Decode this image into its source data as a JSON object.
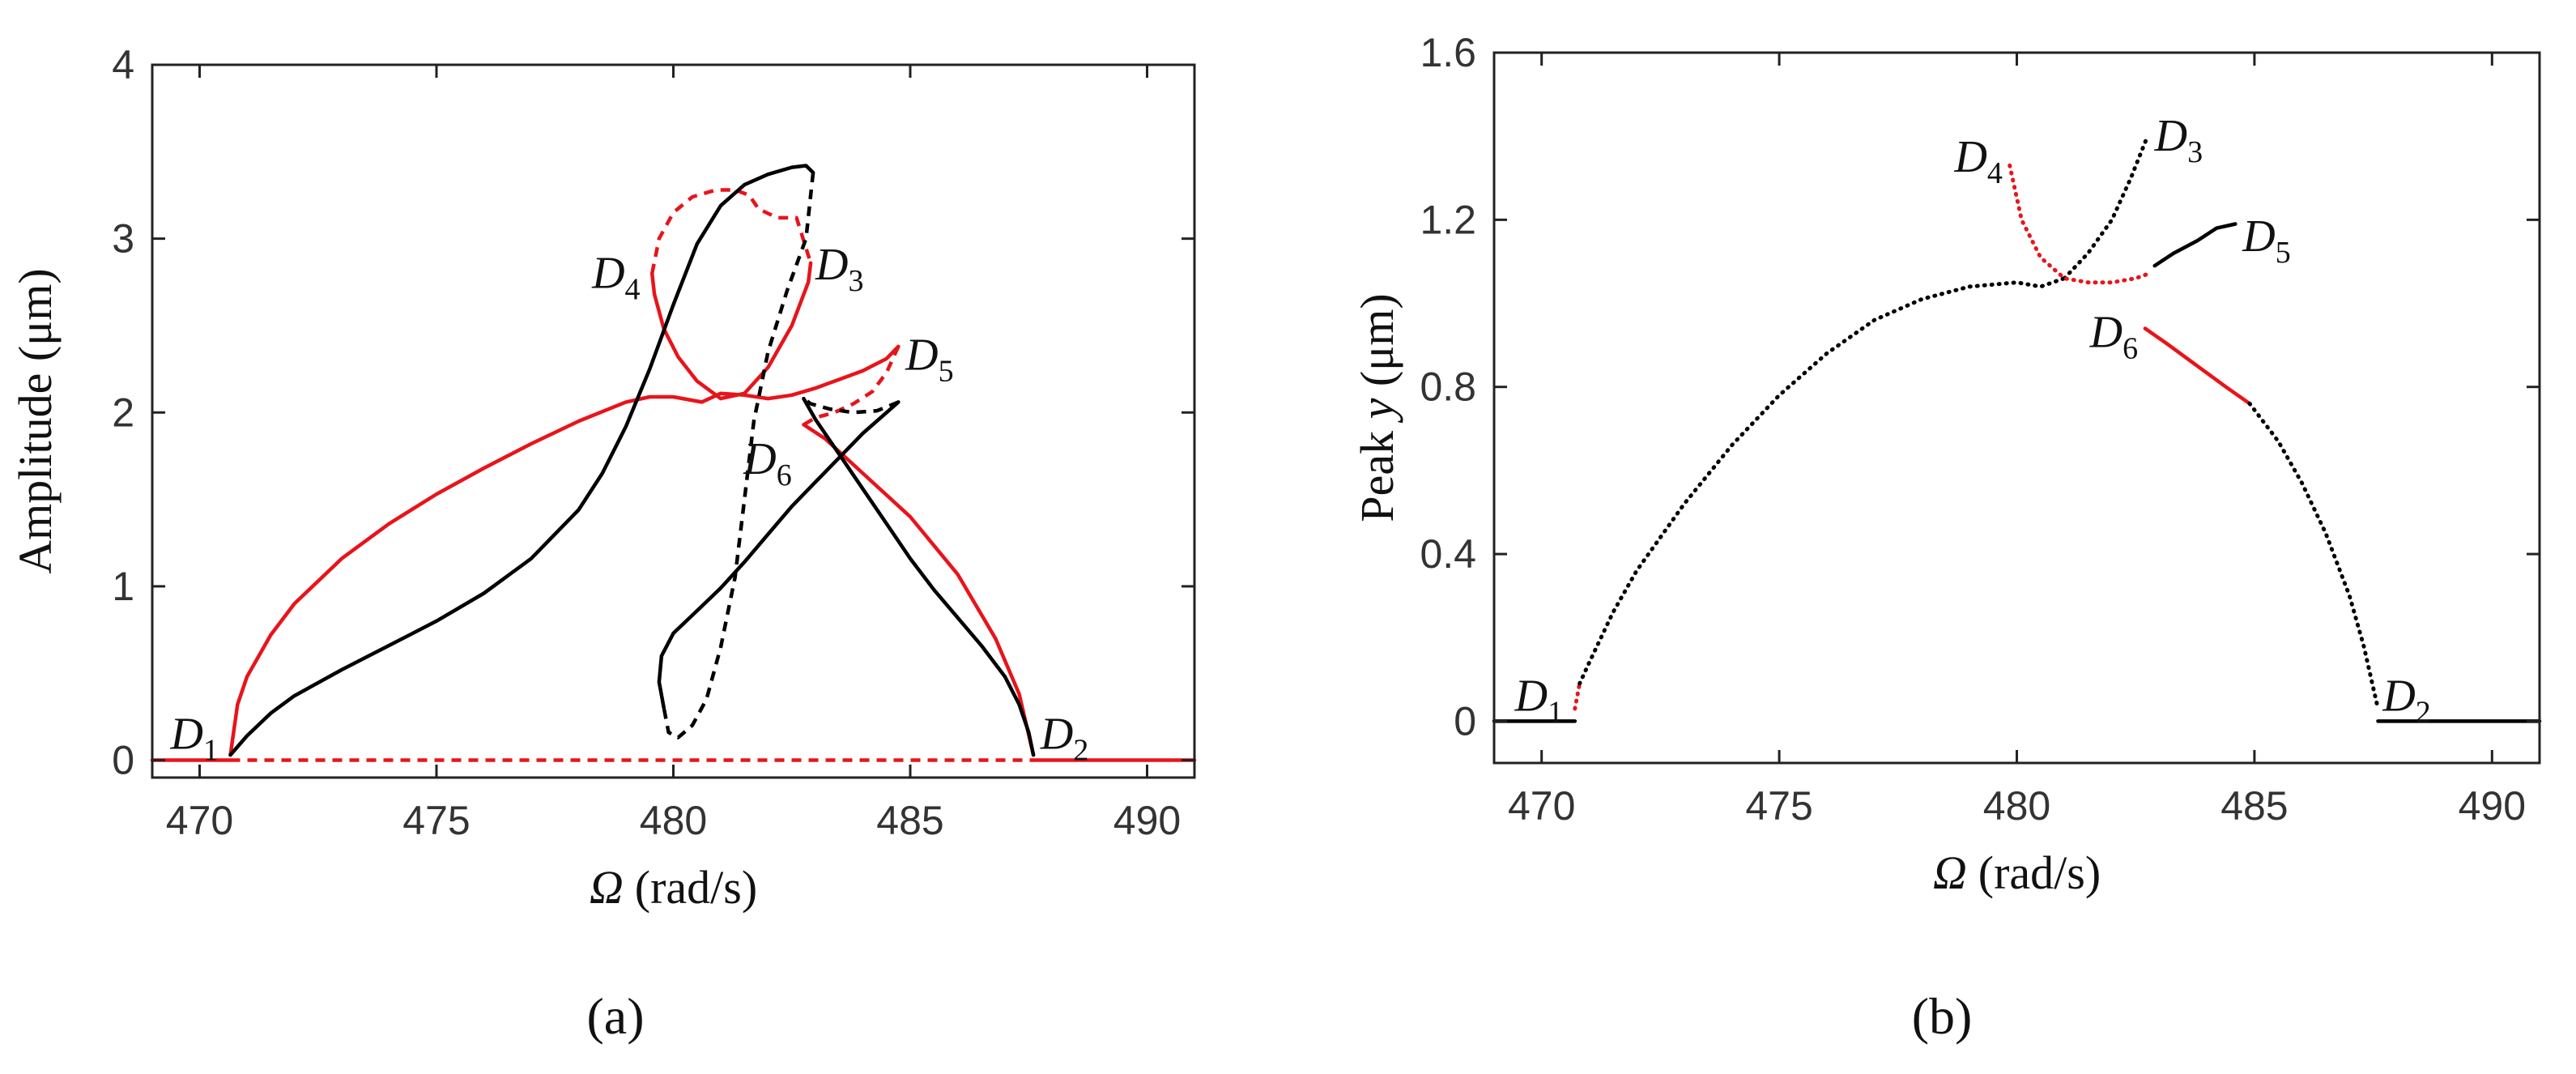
{
  "figure": {
    "caption_a": "(a)",
    "caption_b": "(b)",
    "colors": {
      "black": "#000000",
      "red": "#e8141b",
      "axis": "#222222"
    }
  },
  "chart_data": [
    {
      "id": "a",
      "type": "line",
      "xlabel_symbol": "Ω",
      "xlabel_unit": "(rad/s)",
      "ylabel": "Amplitude (μm)",
      "xlim": [
        469,
        491
      ],
      "ylim": [
        -0.1,
        4
      ],
      "xticks": [
        "470",
        "475",
        "480",
        "485",
        "490"
      ],
      "xtick_values": [
        470,
        475,
        480,
        485,
        490
      ],
      "yticks": [
        "0",
        "1",
        "2",
        "3",
        "4"
      ],
      "ytick_values": [
        0,
        1,
        2,
        3,
        4
      ],
      "points": [
        {
          "name": "D",
          "sub": "1",
          "x": 470.6,
          "y": 0.03,
          "anchor": "end",
          "dx": -0.2,
          "dy": 0.12
        },
        {
          "name": "D",
          "sub": "2",
          "x": 487.6,
          "y": 0.03,
          "anchor": "start",
          "dx": 0.15,
          "dy": 0.12
        },
        {
          "name": "D",
          "sub": "3",
          "x": 482.9,
          "y": 2.85,
          "anchor": "start",
          "dx": 0.1,
          "dy": 0.0
        },
        {
          "name": "D",
          "sub": "4",
          "x": 479.5,
          "y": 2.8,
          "anchor": "end",
          "dx": -0.2,
          "dy": 0.0
        },
        {
          "name": "D",
          "sub": "5",
          "x": 484.7,
          "y": 2.38,
          "anchor": "start",
          "dx": 0.2,
          "dy": -0.05
        },
        {
          "name": "D",
          "sub": "6",
          "x": 482.7,
          "y": 1.93,
          "anchor": "end",
          "dx": -0.2,
          "dy": -0.2
        }
      ],
      "series": [
        {
          "name": "zero-solid",
          "color": "red",
          "dash": false,
          "x": [
            469,
            470.65
          ],
          "y": [
            0,
            0
          ]
        },
        {
          "name": "zero-solid-right",
          "color": "red",
          "dash": false,
          "x": [
            487.6,
            491
          ],
          "y": [
            0,
            0
          ]
        },
        {
          "name": "zero-dashed",
          "color": "red",
          "dash": true,
          "x": [
            470.65,
            487.6
          ],
          "y": [
            0,
            0
          ]
        },
        {
          "name": "red-main",
          "color": "red",
          "dash": false,
          "x": [
            470.65,
            470.8,
            471,
            471.5,
            472,
            473,
            474,
            475,
            476,
            477,
            478,
            479,
            479.5,
            480,
            480.6,
            481,
            481.5,
            482,
            482.5,
            483,
            483.5,
            484,
            484.5,
            484.75
          ],
          "y": [
            0.03,
            0.32,
            0.48,
            0.72,
            0.9,
            1.16,
            1.36,
            1.53,
            1.68,
            1.82,
            1.95,
            2.06,
            2.09,
            2.09,
            2.06,
            2.11,
            2.1,
            2.08,
            2.1,
            2.14,
            2.19,
            2.24,
            2.31,
            2.38
          ]
        },
        {
          "name": "red-loop-left",
          "color": "red",
          "dash": false,
          "x": [
            479.55,
            479.6,
            479.8,
            480.1,
            480.5,
            481,
            481.5,
            482,
            482.5,
            482.85,
            482.9
          ],
          "y": [
            2.8,
            2.68,
            2.48,
            2.32,
            2.18,
            2.08,
            2.11,
            2.26,
            2.5,
            2.75,
            2.86
          ]
        },
        {
          "name": "red-upper-dashed",
          "color": "red",
          "dash": true,
          "x": [
            479.55,
            479.7,
            480,
            480.4,
            480.9,
            481.3,
            481.6,
            481.8,
            482.2,
            482.6,
            482.9
          ],
          "y": [
            2.8,
            3.0,
            3.15,
            3.24,
            3.28,
            3.28,
            3.25,
            3.17,
            3.12,
            3.12,
            2.86
          ]
        },
        {
          "name": "red-right-dashed",
          "color": "red",
          "dash": true,
          "x": [
            484.75,
            484.5,
            484.2,
            483.8,
            483.4,
            483.0,
            482.75
          ],
          "y": [
            2.38,
            2.23,
            2.12,
            2.05,
            2.0,
            1.97,
            1.93
          ]
        },
        {
          "name": "red-right-solid",
          "color": "red",
          "dash": false,
          "x": [
            482.75,
            483.2,
            484,
            485,
            486,
            486.8,
            487.3,
            487.6
          ],
          "y": [
            1.93,
            1.85,
            1.65,
            1.4,
            1.07,
            0.7,
            0.38,
            0.03
          ]
        },
        {
          "name": "black-main",
          "color": "black",
          "dash": false,
          "x": [
            470.65,
            471,
            471.5,
            472,
            473,
            474,
            475,
            476,
            477,
            478,
            478.5,
            479,
            479.5,
            480,
            480.5,
            481,
            481.5,
            482,
            482.5,
            482.8,
            482.95
          ],
          "y": [
            0.03,
            0.14,
            0.27,
            0.37,
            0.52,
            0.66,
            0.8,
            0.96,
            1.16,
            1.44,
            1.65,
            1.92,
            2.25,
            2.62,
            2.97,
            3.19,
            3.31,
            3.37,
            3.41,
            3.42,
            3.38
          ]
        },
        {
          "name": "black-dashed-mid",
          "color": "black",
          "dash": true,
          "x": [
            482.95,
            482.8,
            482.4,
            482.0,
            481.7,
            481.5,
            481.3,
            481.0,
            480.7,
            480.4,
            480.1,
            479.9,
            479.8
          ],
          "y": [
            3.38,
            3.0,
            2.7,
            2.35,
            1.95,
            1.5,
            1.05,
            0.65,
            0.35,
            0.2,
            0.13,
            0.16,
            0.3
          ]
        },
        {
          "name": "black-lower",
          "color": "black",
          "dash": false,
          "x": [
            479.8,
            479.7,
            479.75,
            480,
            480.5,
            481,
            481.5,
            482,
            482.5,
            483,
            483.5,
            484,
            484.5,
            484.75
          ],
          "y": [
            0.3,
            0.45,
            0.6,
            0.73,
            0.86,
            0.99,
            1.14,
            1.3,
            1.46,
            1.6,
            1.74,
            1.88,
            2.0,
            2.06
          ]
        },
        {
          "name": "black-dashed-d5",
          "color": "black",
          "dash": true,
          "x": [
            484.75,
            484.3,
            483.8,
            483.3,
            482.9,
            482.75
          ],
          "y": [
            2.06,
            2.01,
            2.0,
            2.02,
            2.05,
            2.08
          ]
        },
        {
          "name": "black-right",
          "color": "black",
          "dash": false,
          "x": [
            482.75,
            483.0,
            483.5,
            484,
            484.5,
            485,
            485.5,
            486,
            486.5,
            487,
            487.3,
            487.5,
            487.6
          ],
          "y": [
            2.08,
            1.96,
            1.76,
            1.56,
            1.36,
            1.16,
            0.98,
            0.82,
            0.66,
            0.48,
            0.32,
            0.16,
            0.03
          ]
        }
      ]
    },
    {
      "id": "b",
      "type": "scatter",
      "xlabel_symbol": "Ω",
      "xlabel_unit": "(rad/s)",
      "ylabel": "Peak y (μm)",
      "ylabel_main": "Peak ",
      "ylabel_var": "y",
      "ylabel_unit": " (μm)",
      "xlim": [
        469,
        491
      ],
      "ylim": [
        -0.1,
        1.6
      ],
      "xticks": [
        "470",
        "475",
        "480",
        "485",
        "490"
      ],
      "xtick_values": [
        470,
        475,
        480,
        485,
        490
      ],
      "yticks": [
        "0",
        "0.4",
        "0.8",
        "1.2",
        "1.6"
      ],
      "ytick_values": [
        0,
        0.4,
        0.8,
        1.2,
        1.6
      ],
      "points": [
        {
          "name": "D",
          "sub": "1",
          "x": 470.6,
          "y": 0.03,
          "anchor": "end",
          "dx": -0.15,
          "dy": 0.03
        },
        {
          "name": "D",
          "sub": "2",
          "x": 487.6,
          "y": 0.03,
          "anchor": "start",
          "dx": 0.1,
          "dy": 0.03
        },
        {
          "name": "D",
          "sub": "3",
          "x": 482.75,
          "y": 1.4,
          "anchor": "start",
          "dx": 0.15,
          "dy": 0.0
        },
        {
          "name": "D",
          "sub": "4",
          "x": 479.85,
          "y": 1.33,
          "anchor": "end",
          "dx": -0.15,
          "dy": 0.02
        },
        {
          "name": "D",
          "sub": "5",
          "x": 484.6,
          "y": 1.19,
          "anchor": "start",
          "dx": 0.15,
          "dy": -0.03
        },
        {
          "name": "D",
          "sub": "6",
          "x": 482.7,
          "y": 0.94,
          "anchor": "end",
          "dx": -0.15,
          "dy": -0.01
        }
      ],
      "series": [
        {
          "name": "flat-left",
          "color": "black",
          "dash": false,
          "x": [
            469,
            470.7
          ],
          "y": [
            0,
            0
          ]
        },
        {
          "name": "flat-right",
          "color": "black",
          "dash": false,
          "x": [
            487.6,
            491
          ],
          "y": [
            0,
            0
          ]
        },
        {
          "name": "red-start",
          "color": "red",
          "dash": true,
          "x": [
            470.7,
            470.75,
            470.8
          ],
          "y": [
            0.03,
            0.06,
            0.09
          ]
        },
        {
          "name": "black-rise",
          "color": "black",
          "dash": true,
          "x": [
            470.8,
            471,
            471.5,
            472,
            473,
            474,
            475,
            476,
            477,
            478,
            479,
            480,
            480.5,
            481
          ],
          "y": [
            0.09,
            0.14,
            0.26,
            0.36,
            0.52,
            0.66,
            0.78,
            0.88,
            0.96,
            1.01,
            1.04,
            1.05,
            1.04,
            1.06
          ]
        },
        {
          "name": "black-to-d3",
          "color": "black",
          "dash": true,
          "x": [
            481,
            481.5,
            482,
            482.4,
            482.75
          ],
          "y": [
            1.06,
            1.12,
            1.2,
            1.3,
            1.4
          ]
        },
        {
          "name": "red-u",
          "color": "red",
          "dash": true,
          "x": [
            479.85,
            480.1,
            480.5,
            481,
            481.5,
            482,
            482.5,
            482.75
          ],
          "y": [
            1.33,
            1.2,
            1.11,
            1.06,
            1.05,
            1.05,
            1.06,
            1.07
          ]
        },
        {
          "name": "black-d5",
          "color": "black",
          "dash": false,
          "x": [
            482.9,
            483.3,
            483.8,
            484.2,
            484.6
          ],
          "y": [
            1.09,
            1.12,
            1.15,
            1.18,
            1.19
          ]
        },
        {
          "name": "red-fall",
          "color": "red",
          "dash": false,
          "x": [
            482.7,
            483.2,
            483.8,
            484.4,
            484.9
          ],
          "y": [
            0.94,
            0.9,
            0.85,
            0.8,
            0.76
          ]
        },
        {
          "name": "black-fall",
          "color": "black",
          "dash": true,
          "x": [
            484.9,
            485.5,
            486,
            486.5,
            487,
            487.3,
            487.5,
            487.6
          ],
          "y": [
            0.76,
            0.67,
            0.57,
            0.45,
            0.3,
            0.18,
            0.08,
            0.03
          ]
        }
      ]
    }
  ]
}
